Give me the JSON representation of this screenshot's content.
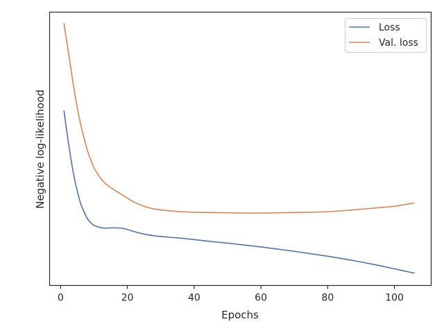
{
  "chart_data": {
    "type": "line",
    "xlabel": "Epochs",
    "ylabel": "Negative log-likelihood",
    "xlim": [
      -3.3,
      111
    ],
    "ylim": [
      0,
      1
    ],
    "y_tick_labels_shown": false,
    "x_ticks": [
      0,
      20,
      40,
      60,
      80,
      100
    ],
    "x_tick_labels": [
      "0",
      "20",
      "40",
      "60",
      "80",
      "100"
    ],
    "grid": false,
    "legend_position": "top-right",
    "series": [
      {
        "name": "Loss",
        "color": "#4c72b0",
        "x": [
          1,
          2,
          3,
          4,
          5,
          6,
          7,
          8,
          9,
          10,
          11,
          12,
          13,
          14,
          16,
          18,
          20,
          22,
          25,
          28,
          32,
          36,
          40,
          45,
          50,
          55,
          60,
          65,
          70,
          75,
          80,
          85,
          90,
          95,
          100,
          106
        ],
        "y": [
          0.64,
          0.55,
          0.47,
          0.4,
          0.345,
          0.3,
          0.27,
          0.245,
          0.23,
          0.22,
          0.215,
          0.212,
          0.21,
          0.21,
          0.211,
          0.21,
          0.205,
          0.197,
          0.188,
          0.182,
          0.177,
          0.173,
          0.168,
          0.161,
          0.155,
          0.148,
          0.141,
          0.133,
          0.125,
          0.116,
          0.107,
          0.097,
          0.086,
          0.074,
          0.061,
          0.045
        ]
      },
      {
        "name": "Val. loss",
        "color": "#dd8452",
        "x": [
          1,
          2,
          3,
          4,
          5,
          6,
          7,
          8,
          9,
          10,
          11,
          12,
          13,
          14,
          16,
          18,
          20,
          22,
          25,
          28,
          32,
          36,
          40,
          45,
          50,
          55,
          60,
          65,
          70,
          75,
          80,
          85,
          90,
          95,
          100,
          106
        ],
        "y": [
          0.96,
          0.88,
          0.8,
          0.72,
          0.65,
          0.59,
          0.54,
          0.495,
          0.46,
          0.43,
          0.41,
          0.392,
          0.378,
          0.367,
          0.35,
          0.335,
          0.32,
          0.305,
          0.29,
          0.28,
          0.274,
          0.27,
          0.268,
          0.267,
          0.266,
          0.265,
          0.265,
          0.266,
          0.267,
          0.268,
          0.27,
          0.274,
          0.279,
          0.284,
          0.29,
          0.302
        ]
      }
    ]
  }
}
